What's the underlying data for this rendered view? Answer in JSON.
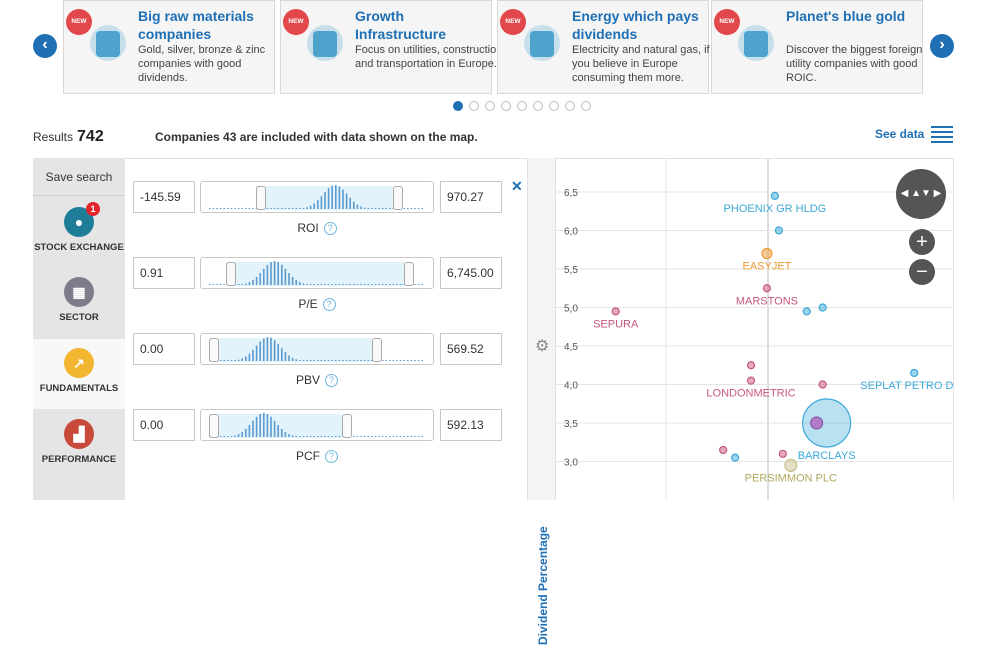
{
  "carousel": {
    "prev_icon": "chevron-left-icon",
    "next_icon": "chevron-right-icon",
    "cards": [
      {
        "badge": "NEW",
        "title": "Big raw materials companies",
        "desc": "Gold, silver, bronze & zinc companies with good dividends.",
        "icon": "tornado-icon"
      },
      {
        "badge": "NEW",
        "title": "Growth Infrastructure",
        "desc": "Focus on utilities, construction and transportation in Europe.",
        "icon": "crane-icon"
      },
      {
        "badge": "NEW",
        "title": "Energy which pays dividends",
        "desc": "Electricity and natural gas, if you believe in Europe consuming them more.",
        "icon": "flame-plug-icon"
      },
      {
        "badge": "NEW",
        "title": "Planet's blue gold",
        "desc": "Discover the biggest foreign utility companies with good ROIC.",
        "icon": "water-drop-hand-icon"
      }
    ],
    "dots": 9,
    "active_dot": 0
  },
  "summary": {
    "results_label": "Results",
    "results_count": "742",
    "included_text": "Companies 43 are included with data shown on the map.",
    "see_data": "See data"
  },
  "sidebar": {
    "save": "Save search",
    "items": [
      {
        "label": "STOCK EXCHANGE",
        "badge": "1",
        "color": "#1e7e98",
        "icon": "map-pin-icon"
      },
      {
        "label": "SECTOR",
        "color": "#7c7c8a",
        "icon": "grid-icon"
      },
      {
        "label": "FUNDAMENTALS",
        "color": "#f2b630",
        "icon": "trend-icon",
        "active": true
      },
      {
        "label": "PERFORMANCE",
        "color": "#c9493b",
        "icon": "bar-chart-icon"
      }
    ]
  },
  "filters": [
    {
      "min": "-145.59",
      "max": "970.27",
      "label": "ROI",
      "lo": 0.22,
      "hi": 0.86
    },
    {
      "min": "0.91",
      "max": "6,745.00",
      "label": "P/E",
      "lo": 0.08,
      "hi": 0.91
    },
    {
      "min": "0.00",
      "max": "569.52",
      "label": "PBV",
      "lo": 0.0,
      "hi": 0.76
    },
    {
      "min": "0.00",
      "max": "592.13",
      "label": "PCF",
      "lo": 0.0,
      "hi": 0.62
    }
  ],
  "chart": {
    "y_label": "Dividend Percentage",
    "y_ticks": [
      "6,5",
      "6,0",
      "5,5",
      "5,0",
      "4,5",
      "4,0",
      "3,5",
      "3,0"
    ],
    "colors": {
      "blue": "#3aa9d8",
      "orange": "#e9982e",
      "pink": "#c8577a",
      "olive": "#c9c08a"
    },
    "points": [
      {
        "label": "PHOENIX GR HLDG",
        "y": 6.45,
        "x": 0.55,
        "c": "blue"
      },
      {
        "label": "",
        "y": 6.0,
        "x": 0.56,
        "c": "blue"
      },
      {
        "label": "EASYJET",
        "y": 5.7,
        "x": 0.53,
        "c": "orange"
      },
      {
        "label": "MARSTONS",
        "y": 5.25,
        "x": 0.53,
        "c": "pink"
      },
      {
        "label": "",
        "y": 4.95,
        "x": 0.63,
        "c": "blue"
      },
      {
        "label": "",
        "y": 5.0,
        "x": 0.67,
        "c": "blue"
      },
      {
        "label": "SEPURA",
        "y": 4.95,
        "x": 0.15,
        "c": "pink"
      },
      {
        "label": "",
        "y": 4.25,
        "x": 0.49,
        "c": "pink"
      },
      {
        "label": "LONDONMETRIC",
        "y": 4.05,
        "x": 0.49,
        "c": "pink"
      },
      {
        "label": "SEPLAT PETRO DEV",
        "y": 4.15,
        "x": 0.9,
        "c": "blue"
      },
      {
        "label": "",
        "y": 4.0,
        "x": 0.67,
        "c": "pink"
      },
      {
        "label": "",
        "y": 3.5,
        "x": 0.65,
        "c": "pink"
      },
      {
        "label": "",
        "y": 3.1,
        "x": 0.57,
        "c": "pink"
      },
      {
        "label": "",
        "y": 3.15,
        "x": 0.42,
        "c": "pink"
      },
      {
        "label": "",
        "y": 3.05,
        "x": 0.45,
        "c": "blue"
      },
      {
        "label": "BARCLAYS",
        "y": 3.5,
        "x": 0.68,
        "c": "blue",
        "big": true
      },
      {
        "label": "PERSIMMON PLC",
        "y": 2.95,
        "x": 0.59,
        "c": "olive"
      }
    ]
  }
}
